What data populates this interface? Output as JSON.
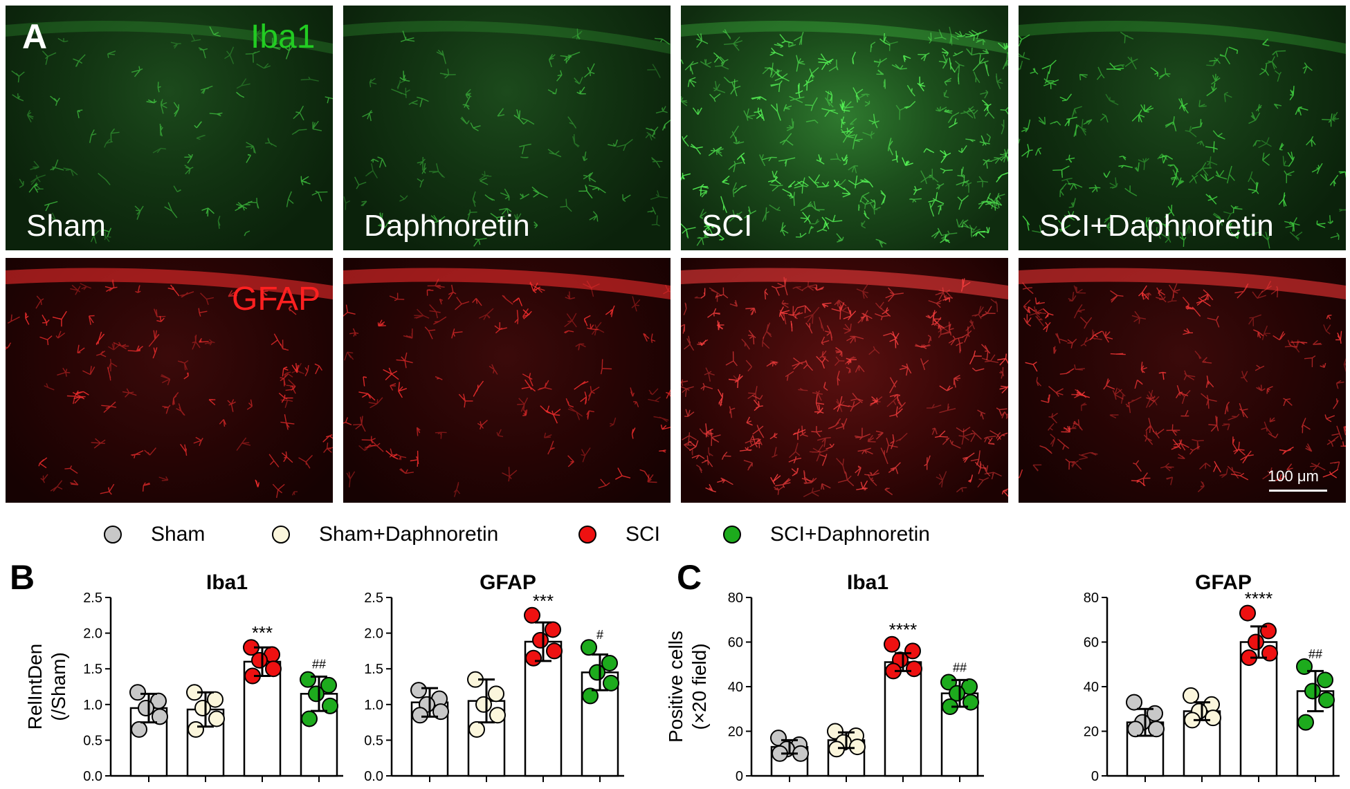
{
  "panel_A": {
    "letter": "A",
    "channel_top": "Iba1",
    "channel_bottom": "GFAP",
    "conditions": [
      "Sham",
      "Daphnoretin",
      "SCI",
      "SCI+Daphnoretin"
    ],
    "scale_bar": "100 μm",
    "colors": {
      "iba1": "#22cc22",
      "gfap": "#ff2020"
    }
  },
  "legend": [
    {
      "label": "Sham",
      "color": "#c8c8c8"
    },
    {
      "label": "Sham+Daphnoretin",
      "color": "#fbf6dc"
    },
    {
      "label": "SCI",
      "color": "#ee1111"
    },
    {
      "label": "SCI+Daphnoretin",
      "color": "#1dab1d"
    }
  ],
  "panel_B_letter": "B",
  "panel_C_letter": "C",
  "chart_data": [
    {
      "type": "bar",
      "panel": "B",
      "title": "Iba1",
      "ylabel": "RelIntDen",
      "ylabel2": "(/Sham)",
      "ylim": [
        0,
        2.5
      ],
      "yticks": [
        "0.0",
        "0.5",
        "1.0",
        "1.5",
        "2.0",
        "2.5"
      ],
      "categories": [
        "Sham",
        "Sham+Daphnoretin",
        "SCI",
        "SCI+Daphnoretin"
      ],
      "values": [
        0.95,
        0.93,
        1.6,
        1.15
      ],
      "sd": [
        0.2,
        0.24,
        0.2,
        0.24
      ],
      "points": [
        [
          1.17,
          1.05,
          0.95,
          0.83,
          0.65
        ],
        [
          1.17,
          1.07,
          0.95,
          0.8,
          0.65
        ],
        [
          1.8,
          1.7,
          1.62,
          1.5,
          1.4
        ],
        [
          1.35,
          1.27,
          1.15,
          0.98,
          0.8
        ]
      ],
      "significance": [
        "",
        "",
        "***",
        "##"
      ]
    },
    {
      "type": "bar",
      "panel": "B",
      "title": "GFAP",
      "ylabel": "",
      "ylabel2": "",
      "ylim": [
        0,
        2.5
      ],
      "yticks": [
        "0.0",
        "0.5",
        "1.0",
        "1.5",
        "2.0",
        "2.5"
      ],
      "categories": [
        "Sham",
        "Sham+Daphnoretin",
        "SCI",
        "SCI+Daphnoretin"
      ],
      "values": [
        1.03,
        1.05,
        1.88,
        1.45
      ],
      "sd": [
        0.2,
        0.3,
        0.27,
        0.25
      ],
      "points": [
        [
          1.2,
          1.08,
          1.0,
          0.9,
          0.85
        ],
        [
          1.35,
          1.15,
          1.0,
          0.85,
          0.65
        ],
        [
          2.25,
          2.05,
          1.9,
          1.75,
          1.65
        ],
        [
          1.8,
          1.58,
          1.45,
          1.3,
          1.12
        ]
      ],
      "significance": [
        "",
        "",
        "***",
        "#"
      ]
    },
    {
      "type": "bar",
      "panel": "C",
      "title": "Iba1",
      "ylabel": "Positive cells",
      "ylabel2": "(×20 field)",
      "ylim": [
        0,
        80
      ],
      "yticks": [
        "0",
        "20",
        "40",
        "60",
        "80"
      ],
      "categories": [
        "Sham",
        "Sham+Daphnoretin",
        "SCI",
        "SCI+Daphnoretin"
      ],
      "values": [
        13,
        16,
        51,
        37
      ],
      "sd": [
        3,
        3.5,
        4,
        6
      ],
      "points": [
        [
          17,
          14,
          12,
          10,
          10
        ],
        [
          20,
          18,
          15,
          13,
          12
        ],
        [
          59,
          56,
          52,
          48,
          47
        ],
        [
          42,
          40,
          37,
          33,
          31
        ]
      ],
      "significance": [
        "",
        "",
        "****",
        "##"
      ]
    },
    {
      "type": "bar",
      "panel": "C",
      "title": "GFAP",
      "ylabel": "",
      "ylabel2": "",
      "ylim": [
        0,
        80
      ],
      "yticks": [
        "0",
        "20",
        "40",
        "60",
        "80"
      ],
      "categories": [
        "Sham",
        "Sham+Daphnoretin",
        "SCI",
        "SCI+Daphnoretin"
      ],
      "values": [
        24,
        29,
        60,
        38
      ],
      "sd": [
        6,
        4,
        7,
        9
      ],
      "points": [
        [
          33,
          28,
          24,
          21,
          21
        ],
        [
          36,
          32,
          29,
          26,
          25
        ],
        [
          73,
          65,
          60,
          55,
          53
        ],
        [
          49,
          43,
          38,
          34,
          24
        ]
      ],
      "significance": [
        "",
        "",
        "****",
        "##"
      ]
    }
  ]
}
